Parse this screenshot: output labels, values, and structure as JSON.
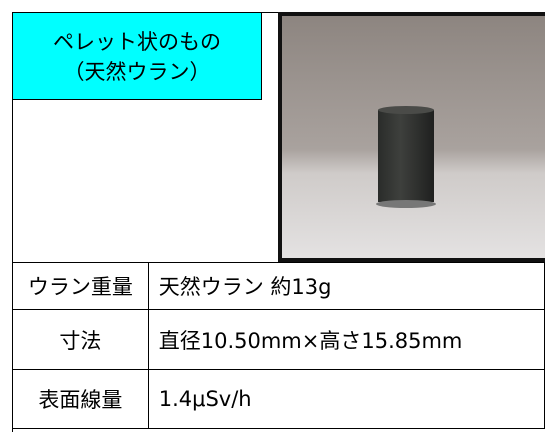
{
  "header": {
    "label": [
      "ペレット状のもの",
      "（天然ウラン）"
    ]
  },
  "table": {
    "rows": [
      [
        "ウラン重量",
        "天然ウラン 約13g"
      ],
      [
        "寸法",
        "直径10.50mm×高さ15.85mm"
      ],
      [
        "表面線量",
        "1.4μSv/h"
      ]
    ]
  }
}
